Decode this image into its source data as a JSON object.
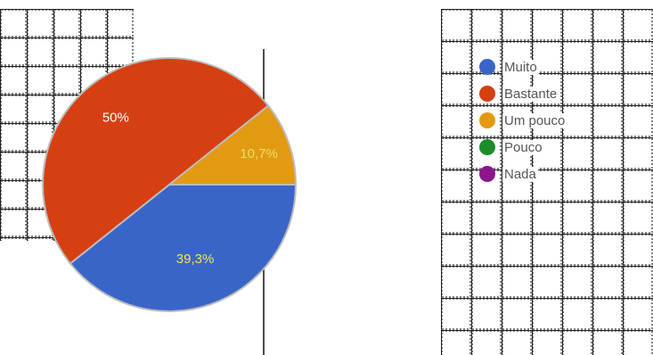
{
  "chart_data": {
    "type": "pie",
    "title": "",
    "slices": [
      {
        "name": "Muito",
        "value": 39.3,
        "label": "39,3%",
        "color": "#3a65c8"
      },
      {
        "name": "Bastante",
        "value": 50,
        "label": "50%",
        "color": "#d63f12"
      },
      {
        "name": "Um pouco",
        "value": 10.7,
        "label": "10,7%",
        "color": "#e39a13"
      },
      {
        "name": "Pouco",
        "value": 0,
        "label": "",
        "color": "#1f8c2a"
      },
      {
        "name": "Nada",
        "value": 0,
        "label": "",
        "color": "#8c168c"
      }
    ],
    "legend_position": "right",
    "label_colors": {
      "Muito": "#f2e84c",
      "Bastante": "#ffffff",
      "Um pouco": "#e8e060"
    }
  }
}
